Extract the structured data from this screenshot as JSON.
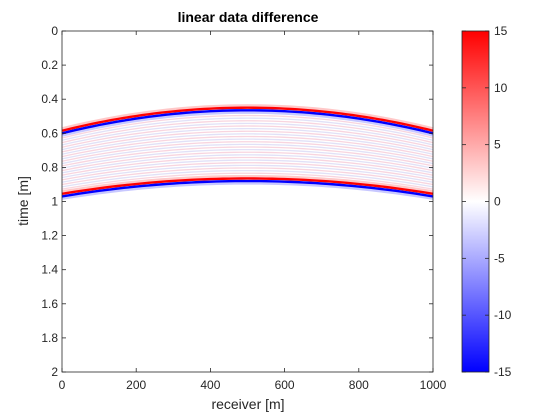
{
  "chart_data": {
    "type": "heatmap",
    "title": "linear data difference",
    "xlabel": "receiver [m]",
    "ylabel": "time [m]",
    "xlim": [
      0,
      1000
    ],
    "ylim": [
      0,
      2
    ],
    "y_reversed": true,
    "xticks": [
      0,
      200,
      400,
      600,
      800,
      1000
    ],
    "xtick_labels": [
      "0",
      "200",
      "400",
      "600",
      "800",
      "1000"
    ],
    "yticks": [
      0,
      0.2,
      0.4,
      0.6,
      0.8,
      1,
      1.2,
      1.4,
      1.6,
      1.8,
      2
    ],
    "ytick_labels": [
      "0",
      "0.2",
      "0.4",
      "0.6",
      "0.8",
      "1",
      "1.2",
      "1.4",
      "1.6",
      "1.8",
      "2"
    ],
    "colorbar": {
      "clim": [
        -15,
        15
      ],
      "ticks": [
        15,
        10,
        5,
        0,
        -5,
        -10,
        -15
      ],
      "tick_labels": [
        "15",
        "10",
        "5",
        "0",
        "-5",
        "-10",
        "-15"
      ],
      "colormap": "blue-white-red",
      "low_color": "#0000ff",
      "mid_color": "#ffffff",
      "high_color": "#ff0000"
    },
    "events": [
      {
        "apex_x": 500,
        "apex_time": 0.45,
        "edge_time": 0.585,
        "polarity": "red"
      },
      {
        "apex_x": 500,
        "apex_time": 0.465,
        "edge_time": 0.6,
        "polarity": "blue"
      },
      {
        "apex_x": 500,
        "apex_time": 0.865,
        "edge_time": 0.955,
        "polarity": "red"
      },
      {
        "apex_x": 500,
        "apex_time": 0.88,
        "edge_time": 0.97,
        "polarity": "blue"
      }
    ],
    "grid": false
  }
}
